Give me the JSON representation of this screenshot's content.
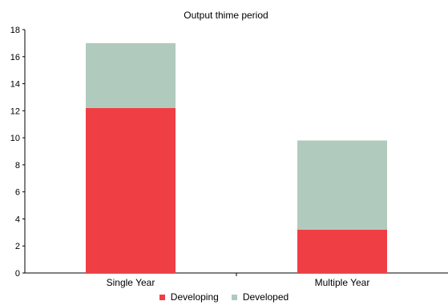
{
  "chart_data": {
    "type": "bar",
    "stacked": true,
    "title": "Output thime period",
    "xlabel": "",
    "ylabel": "",
    "categories": [
      "Single Year",
      "Multiple Year"
    ],
    "series": [
      {
        "name": "Developing",
        "values": [
          12.2,
          3.2
        ],
        "color": "#ef3e44"
      },
      {
        "name": "Developed",
        "values": [
          4.8,
          6.6
        ],
        "color": "#b0cabe"
      }
    ],
    "ylim": [
      0,
      18
    ],
    "yticks": [
      0,
      2,
      4,
      6,
      8,
      10,
      12,
      14,
      16,
      18
    ],
    "grid": false,
    "legend_position": "bottom"
  }
}
